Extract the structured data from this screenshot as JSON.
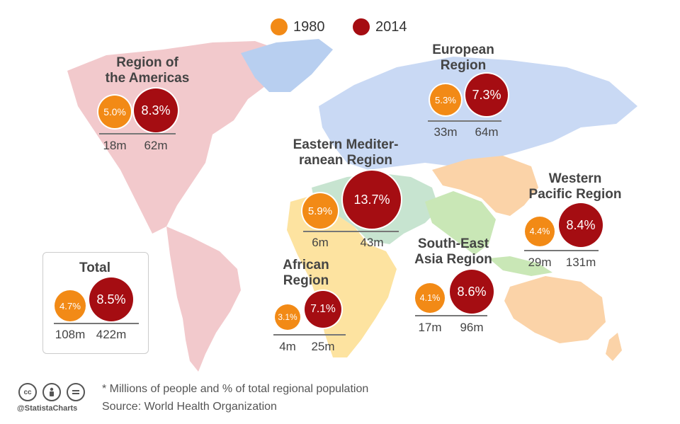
{
  "legend": {
    "items": [
      {
        "label": "1980",
        "color": "#f28a16"
      },
      {
        "label": "2014",
        "color": "#a50d12"
      }
    ]
  },
  "chart_data": {
    "type": "bubble-map",
    "series": [
      {
        "name": "1980",
        "color": "#f28a16"
      },
      {
        "name": "2014",
        "color": "#a50d12"
      }
    ],
    "regions": [
      {
        "key": "americas",
        "name_lines": [
          "Region of",
          "the Americas"
        ],
        "v1980": "5.0%",
        "v2014": "8.3%",
        "p1980": "18m",
        "p2014": "62m"
      },
      {
        "key": "europe",
        "name_lines": [
          "European",
          "Region"
        ],
        "v1980": "5.3%",
        "v2014": "7.3%",
        "p1980": "33m",
        "p2014": "64m"
      },
      {
        "key": "emr",
        "name_lines": [
          "Eastern Mediter-",
          "ranean Region"
        ],
        "v1980": "5.9%",
        "v2014": "13.7%",
        "p1980": "6m",
        "p2014": "43m"
      },
      {
        "key": "wpr",
        "name_lines": [
          "Western",
          "Pacific Region"
        ],
        "v1980": "4.4%",
        "v2014": "8.4%",
        "p1980": "29m",
        "p2014": "131m"
      },
      {
        "key": "sea",
        "name_lines": [
          "South-East",
          "Asia Region"
        ],
        "v1980": "4.1%",
        "v2014": "8.6%",
        "p1980": "17m",
        "p2014": "96m"
      },
      {
        "key": "africa",
        "name_lines": [
          "African",
          "Region"
        ],
        "v1980": "3.1%",
        "v2014": "7.1%",
        "p1980": "4m",
        "p2014": "25m"
      },
      {
        "key": "total",
        "name_lines": [
          "Total"
        ],
        "v1980": "4.7%",
        "v2014": "8.5%",
        "p1980": "108m",
        "p2014": "422m"
      }
    ]
  },
  "footer": {
    "note": "* Millions of people and % of total regional population",
    "source": "Source: World Health Organization",
    "handle": "@StatistaCharts",
    "license_icons": [
      "creative-commons-icon",
      "attribution-icon",
      "no-derivatives-icon"
    ]
  }
}
